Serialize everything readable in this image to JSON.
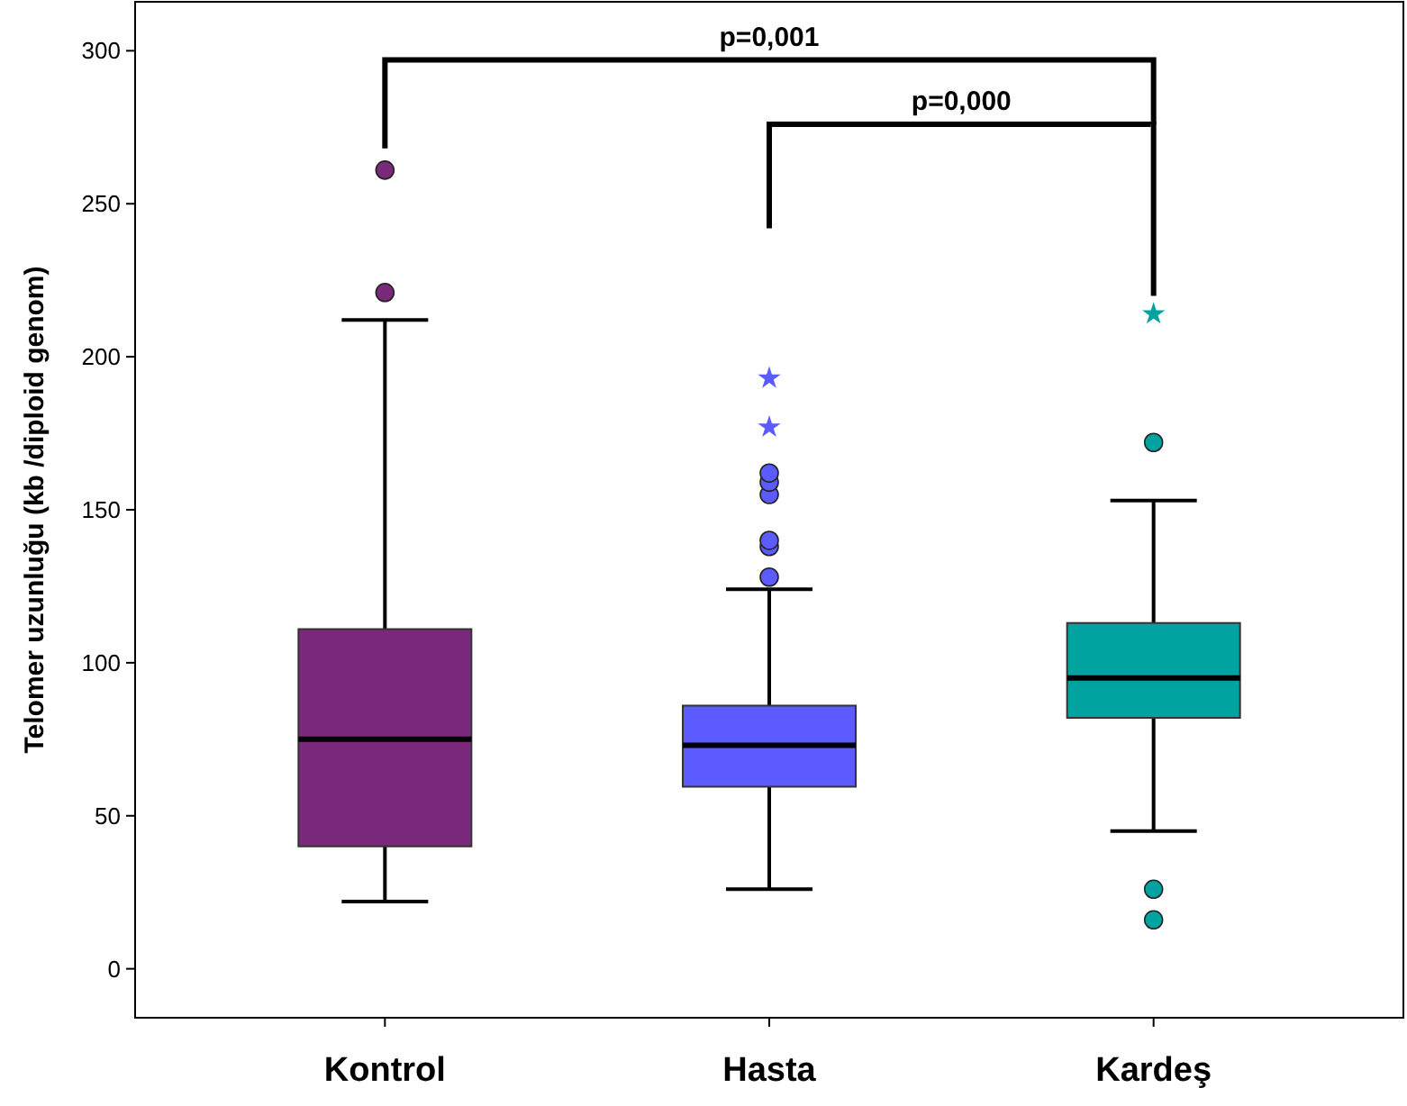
{
  "chart_data": {
    "type": "box",
    "ylabel": "Telomer uzunluğu (kb /diploid genom)",
    "categories": [
      "Kontrol",
      "Hasta",
      "Kardeş"
    ],
    "colors": [
      "#7b2a7b",
      "#5b5bff",
      "#00a3a0"
    ],
    "boxes": [
      {
        "low": 22,
        "q1": 40,
        "median": 75,
        "q3": 111,
        "high": 212,
        "outliers": [
          221,
          261
        ]
      },
      {
        "low": 26,
        "q1": 59.5,
        "median": 73,
        "q3": 86,
        "high": 124,
        "outliers": [
          128,
          138,
          140,
          155,
          159,
          162,
          177,
          193
        ]
      },
      {
        "low": 45,
        "q1": 82,
        "median": 95,
        "q3": 113,
        "high": 153,
        "outliers": [
          16,
          26,
          172,
          214
        ]
      }
    ],
    "ylim": [
      -16,
      316
    ],
    "yticks": [
      0,
      50,
      100,
      150,
      200,
      250,
      300
    ],
    "grid": false,
    "annotations": [
      "p=0,001",
      "p=0,000"
    ]
  }
}
